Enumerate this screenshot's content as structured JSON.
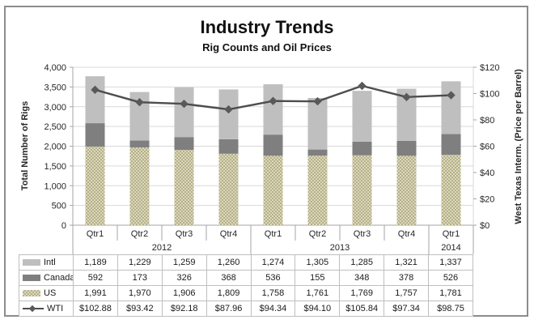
{
  "title": "Industry Trends",
  "subtitle": "Rig Counts and Oil Prices",
  "y_left": {
    "title": "Total Number of Rigs",
    "min": 0,
    "max": 4000,
    "step": 500,
    "tick_labels": [
      "4,000",
      "3,500",
      "3,000",
      "2,500",
      "2,000",
      "1,500",
      "1,000",
      "500",
      "0"
    ]
  },
  "y_right": {
    "title": "West Texas Interm. (Price per Barrel)",
    "min": 0,
    "max": 120,
    "step": 20,
    "tick_labels": [
      "$120",
      "$100",
      "$80",
      "$60",
      "$40",
      "$20",
      "$0"
    ]
  },
  "x_axis": {
    "quarters": [
      "Qtr1",
      "Qtr2",
      "Qtr3",
      "Qtr4",
      "Qtr1",
      "Qtr2",
      "Qtr3",
      "Qtr4",
      "Qtr1"
    ],
    "year_groups": [
      {
        "label": "2012",
        "span": 4
      },
      {
        "label": "2013",
        "span": 4
      },
      {
        "label": "2014",
        "span": 1
      }
    ]
  },
  "chart_data": {
    "type": "combo-stacked-bar-line",
    "categories": [
      "2012 Qtr1",
      "2012 Qtr2",
      "2012 Qtr3",
      "2012 Qtr4",
      "2013 Qtr1",
      "2013 Qtr2",
      "2013 Qtr3",
      "2013 Qtr4",
      "2014 Qtr1"
    ],
    "title": "Industry Trends",
    "subtitle": "Rig Counts and Oil Prices",
    "ylabel_left": "Total Number of Rigs",
    "ylabel_right": "West Texas Interm. (Price per Barrel)",
    "ylim_left": [
      0,
      4000
    ],
    "ylim_right": [
      0,
      120
    ],
    "grid": true,
    "legend_position": "bottom-table",
    "series": [
      {
        "name": "US",
        "type": "bar",
        "axis": "left",
        "color": "#cdc9a5",
        "pattern": "checker",
        "values": [
          1991,
          1970,
          1906,
          1809,
          1758,
          1761,
          1769,
          1757,
          1781
        ]
      },
      {
        "name": "Canada",
        "type": "bar",
        "axis": "left",
        "color": "#7f7f7f",
        "pattern": "solid",
        "values": [
          592,
          173,
          326,
          368,
          536,
          155,
          348,
          378,
          526
        ]
      },
      {
        "name": "Intl",
        "type": "bar",
        "axis": "left",
        "color": "#bfbfbf",
        "pattern": "solid",
        "values": [
          1189,
          1229,
          1259,
          1260,
          1274,
          1305,
          1285,
          1321,
          1337
        ]
      },
      {
        "name": "WTI",
        "type": "line",
        "axis": "right",
        "color": "#4d4d4d",
        "marker": "diamond",
        "values": [
          102.88,
          93.42,
          92.18,
          87.96,
          94.34,
          94.1,
          105.84,
          97.34,
          98.75
        ]
      }
    ]
  },
  "table": {
    "rows": [
      {
        "label": "Intl",
        "key": "intl",
        "swatch": "bar",
        "values": [
          "1,189",
          "1,229",
          "1,259",
          "1,260",
          "1,274",
          "1,305",
          "1,285",
          "1,321",
          "1,337"
        ]
      },
      {
        "label": "Canada",
        "key": "canada",
        "swatch": "bar",
        "values": [
          "592",
          "173",
          "326",
          "368",
          "536",
          "155",
          "348",
          "378",
          "526"
        ]
      },
      {
        "label": "US",
        "key": "us",
        "swatch": "bar-pattern",
        "values": [
          "1,991",
          "1,970",
          "1,906",
          "1,809",
          "1,758",
          "1,761",
          "1,769",
          "1,757",
          "1,781"
        ]
      },
      {
        "label": "WTI",
        "key": "wti",
        "swatch": "line",
        "values": [
          "$102.88",
          "$93.42",
          "$92.18",
          "$87.96",
          "$94.34",
          "$94.10",
          "$105.84",
          "$97.34",
          "$98.75"
        ]
      }
    ]
  },
  "colors": {
    "us_checker_dark": "#b5b088",
    "us_checker_light": "#dbd8bd",
    "canada": "#7f7f7f",
    "intl": "#bfbfbf",
    "wti_line": "#4d4d4d",
    "wti_marker": "#595959",
    "gridline": "#d9d9d9",
    "axis_line": "#a6a6a6",
    "table_border": "#bfbfbf",
    "frame_border": "#8c8c8c",
    "text": "#262626"
  }
}
